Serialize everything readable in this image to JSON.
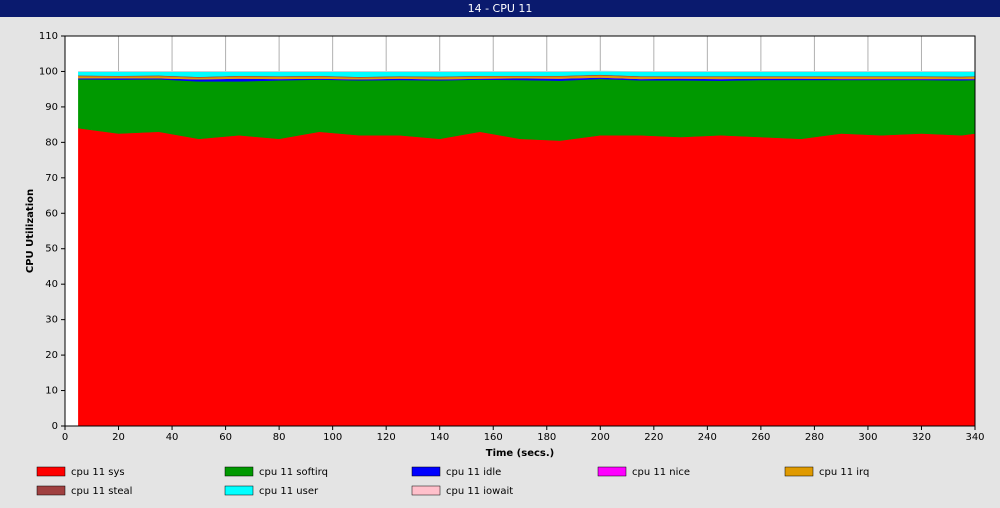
{
  "chart_data": {
    "type": "stacked-area",
    "title": "14 - CPU 11",
    "x_label": "Time (secs.)",
    "y_label": "CPU Utilization",
    "x": [
      5,
      20,
      35,
      50,
      65,
      80,
      95,
      110,
      125,
      140,
      155,
      170,
      185,
      200,
      215,
      230,
      245,
      260,
      275,
      290,
      305,
      320,
      335,
      340
    ],
    "series": [
      {
        "name": "cpu 11 sys",
        "color": "#ff0000",
        "values": [
          84,
          82.5,
          83,
          81,
          82,
          81,
          83,
          82,
          82,
          81,
          83,
          81,
          80.5,
          82,
          82,
          81.5,
          82,
          81.5,
          81,
          82.5,
          82,
          82.5,
          82,
          82.5
        ]
      },
      {
        "name": "cpu 11 softirq",
        "color": "#009900",
        "values": [
          13.8,
          15.2,
          14.8,
          16.2,
          15.2,
          16.5,
          14.7,
          15.5,
          15.6,
          16.5,
          14.7,
          16.6,
          16.9,
          15.9,
          15.5,
          16,
          15.4,
          16.1,
          16.6,
          15.1,
          15.6,
          15.1,
          15.5,
          15.1
        ]
      },
      {
        "name": "cpu 11 idle",
        "color": "#0000ff",
        "values": [
          0.3,
          0.4,
          0.3,
          0.6,
          0.8,
          0.4,
          0.3,
          0.3,
          0.4,
          0.3,
          0.3,
          0.5,
          0.6,
          0.4,
          0.4,
          0.5,
          0.5,
          0.4,
          0.4,
          0.3,
          0.3,
          0.3,
          0.4,
          0.3
        ]
      },
      {
        "name": "cpu 11 nice",
        "color": "#ff00ff",
        "values": [
          0,
          0,
          0,
          0,
          0,
          0,
          0,
          0,
          0,
          0,
          0,
          0,
          0,
          0,
          0,
          0,
          0,
          0,
          0,
          0,
          0,
          0,
          0,
          0
        ]
      },
      {
        "name": "cpu 11 irq",
        "color": "#e09a00",
        "values": [
          0.6,
          0.5,
          0.6,
          0.5,
          0.6,
          0.6,
          0.6,
          0.5,
          0.5,
          0.6,
          0.6,
          0.5,
          0.6,
          0.6,
          0.6,
          0.5,
          0.6,
          0.5,
          0.5,
          0.6,
          0.6,
          0.6,
          0.5,
          0.6
        ]
      },
      {
        "name": "cpu 11 steal",
        "color": "#a04040",
        "values": [
          0.2,
          0.2,
          0.2,
          0.2,
          0.2,
          0.2,
          0.2,
          0.2,
          0.2,
          0.2,
          0.2,
          0.2,
          0.2,
          0.2,
          0.2,
          0.2,
          0.2,
          0.2,
          0.2,
          0.2,
          0.2,
          0.2,
          0.2,
          0.2
        ]
      },
      {
        "name": "cpu 11 user",
        "color": "#00ffff",
        "values": [
          1.1,
          1.2,
          1.1,
          1.5,
          1.2,
          1.3,
          1.2,
          1.5,
          1.3,
          1.4,
          1.2,
          1.2,
          1.2,
          1.0,
          1.3,
          1.3,
          1.3,
          1.3,
          1.3,
          1.3,
          1.3,
          1.3,
          1.4,
          1.3
        ]
      },
      {
        "name": "cpu 11 iowait",
        "color": "#ffc0cb",
        "values": [
          0,
          0,
          0,
          0,
          0,
          0,
          0,
          0,
          0,
          0,
          0,
          0,
          0,
          0,
          0,
          0,
          0,
          0,
          0,
          0,
          0,
          0,
          0,
          0
        ]
      }
    ],
    "xlim": [
      0,
      340
    ],
    "xticks": [
      0,
      20,
      40,
      60,
      80,
      100,
      120,
      140,
      160,
      180,
      200,
      220,
      240,
      260,
      280,
      300,
      320,
      340
    ],
    "ylim": [
      0,
      110
    ],
    "yticks": [
      0,
      10,
      20,
      30,
      40,
      50,
      60,
      70,
      80,
      90,
      100,
      110
    ],
    "grid": "x"
  }
}
